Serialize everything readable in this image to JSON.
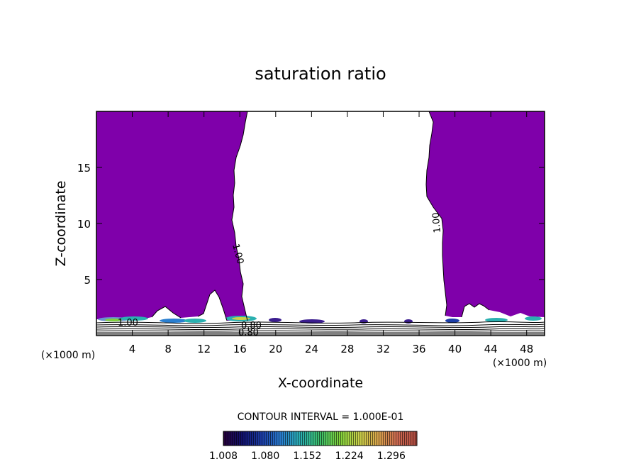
{
  "chart_data": {
    "type": "contour",
    "title": "saturation ratio",
    "xlabel": "X-coordinate",
    "ylabel": "Z-coordinate",
    "x_unit": "(×1000 m)",
    "x_unit_right": "(×1000 m)",
    "xlim": [
      0,
      50
    ],
    "ylim": [
      0,
      20
    ],
    "x_ticks": [
      4,
      8,
      12,
      16,
      20,
      24,
      28,
      32,
      36,
      40,
      44,
      48
    ],
    "y_ticks": [
      5,
      10,
      15
    ],
    "contour_labels": [
      "1.00",
      "1.00",
      "1.00",
      "0.80",
      "0.80"
    ],
    "contour_interval_text": "CONTOUR INTERVAL = 1.000E-01",
    "colorbar_ticks": [
      "1.008",
      "1.080",
      "1.152",
      "1.224",
      "1.296"
    ],
    "colorbar_range": [
      1.008,
      1.34
    ],
    "colors": {
      "fill_main": "#7f00aa",
      "low_band": "#000000",
      "colorbar_stops": [
        "#26003a",
        "#12126e",
        "#1c3ea8",
        "#2a7fd0",
        "#2ab0b0",
        "#3cbf6a",
        "#7fd23c",
        "#c9d24a",
        "#d9a44c",
        "#cf6a52",
        "#b04a40"
      ]
    }
  }
}
